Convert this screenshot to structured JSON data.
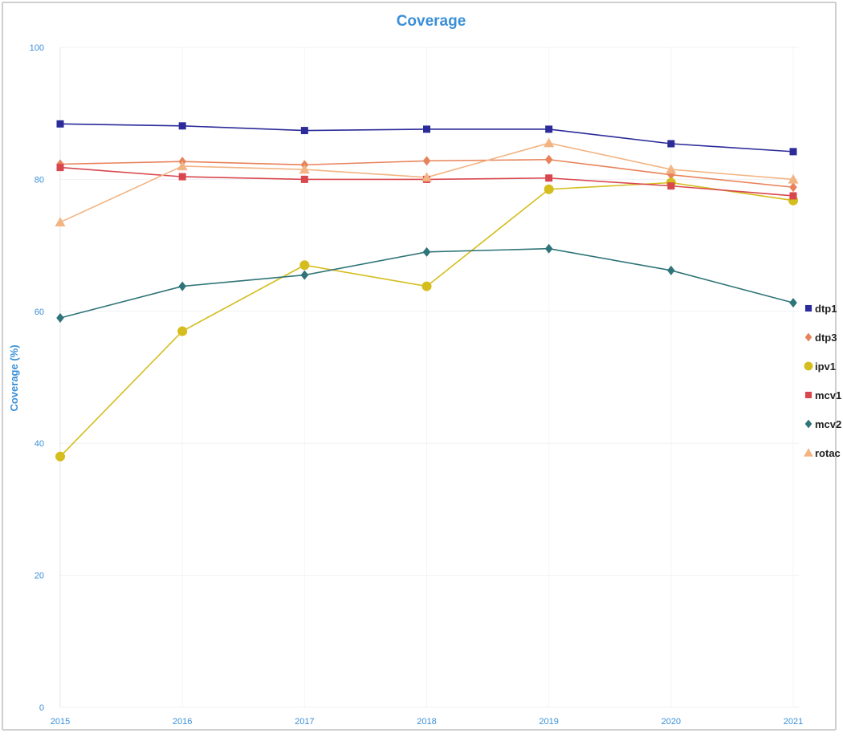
{
  "chart_data": {
    "type": "line",
    "title": "Coverage",
    "xlabel": "",
    "ylabel": "Coverage (%)",
    "ylim": [
      0,
      100
    ],
    "yticks": [
      0,
      20,
      40,
      60,
      80,
      100
    ],
    "x": [
      "2015",
      "2016",
      "2017",
      "2018",
      "2019",
      "2020",
      "2021"
    ],
    "grid": true,
    "legend_position": "right",
    "series": [
      {
        "name": "dtp1",
        "color": "#2b2b9a",
        "marker": "square",
        "values": [
          88.4,
          88.1,
          87.4,
          87.6,
          87.6,
          85.4,
          84.2
        ]
      },
      {
        "name": "dtp3",
        "color": "#e8825a",
        "marker": "diamond",
        "values": [
          82.3,
          82.7,
          82.2,
          82.8,
          83.0,
          80.7,
          78.8
        ]
      },
      {
        "name": "ipv1",
        "color": "#d4bd1c",
        "marker": "circle",
        "values": [
          38.0,
          57.0,
          67.0,
          63.8,
          78.5,
          79.5,
          76.8
        ]
      },
      {
        "name": "mcv1",
        "color": "#d9474e",
        "marker": "square",
        "values": [
          81.8,
          80.4,
          80.0,
          80.0,
          80.2,
          79.0,
          77.5
        ]
      },
      {
        "name": "mcv2",
        "color": "#2f7478",
        "marker": "diamond",
        "values": [
          59.0,
          63.8,
          65.5,
          69.0,
          69.5,
          66.2,
          61.3
        ]
      },
      {
        "name": "rotac",
        "color": "#f2b483",
        "marker": "triangle",
        "values": [
          73.5,
          82.0,
          81.5,
          80.3,
          85.5,
          81.5,
          80.0
        ]
      }
    ]
  }
}
